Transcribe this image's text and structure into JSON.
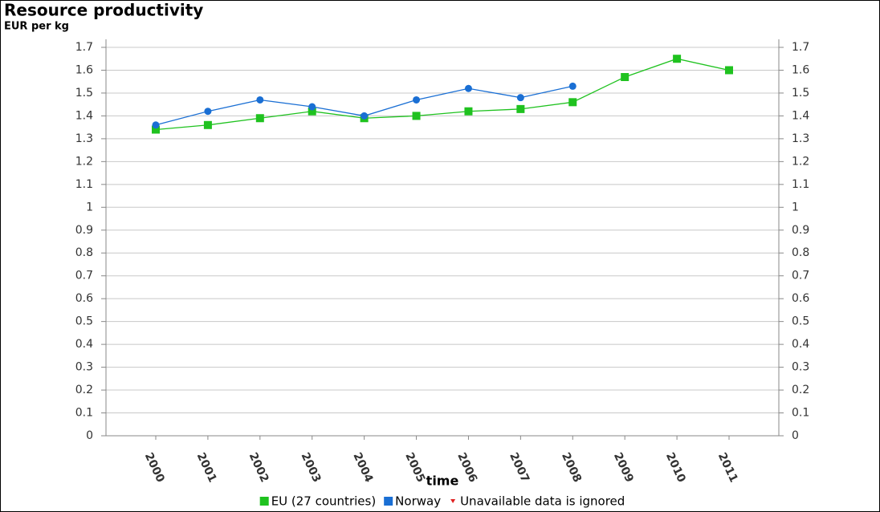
{
  "chart_data": {
    "type": "line",
    "title": "Resource productivity",
    "subtitle": "EUR per kg",
    "x_label": "time",
    "categories": [
      "2000",
      "2001",
      "2002",
      "2003",
      "2004",
      "2005",
      "2006",
      "2007",
      "2008",
      "2009",
      "2010",
      "2011"
    ],
    "series": [
      {
        "name": "EU (27 countries)",
        "color": "#1fc21f",
        "marker": "square",
        "values": [
          1.34,
          1.36,
          1.39,
          1.42,
          1.39,
          1.4,
          1.42,
          1.43,
          1.46,
          1.57,
          1.65,
          1.6
        ]
      },
      {
        "name": "Norway",
        "color": "#1a6fd4",
        "marker": "circle",
        "values": [
          1.36,
          1.42,
          1.47,
          1.44,
          1.4,
          1.47,
          1.52,
          1.48,
          1.53,
          null,
          null,
          null
        ]
      }
    ],
    "legend_note": {
      "text": "Unavailable data is ignored",
      "color": "#e02020"
    },
    "ylim": [
      0,
      1.7
    ],
    "yticks": [
      0,
      0.1,
      0.2,
      0.3,
      0.4,
      0.5,
      0.6,
      0.7,
      0.8,
      0.9,
      1,
      1.1,
      1.2,
      1.3,
      1.4,
      1.5,
      1.6,
      1.7
    ],
    "y2lim": [
      0,
      1.7
    ],
    "y2ticks": [
      0,
      0.1,
      0.2,
      0.3,
      0.4,
      0.5,
      0.6,
      0.7,
      0.8,
      0.9,
      1,
      1.1,
      1.2,
      1.3,
      1.4,
      1.5,
      1.6,
      1.7
    ],
    "grid": true
  }
}
